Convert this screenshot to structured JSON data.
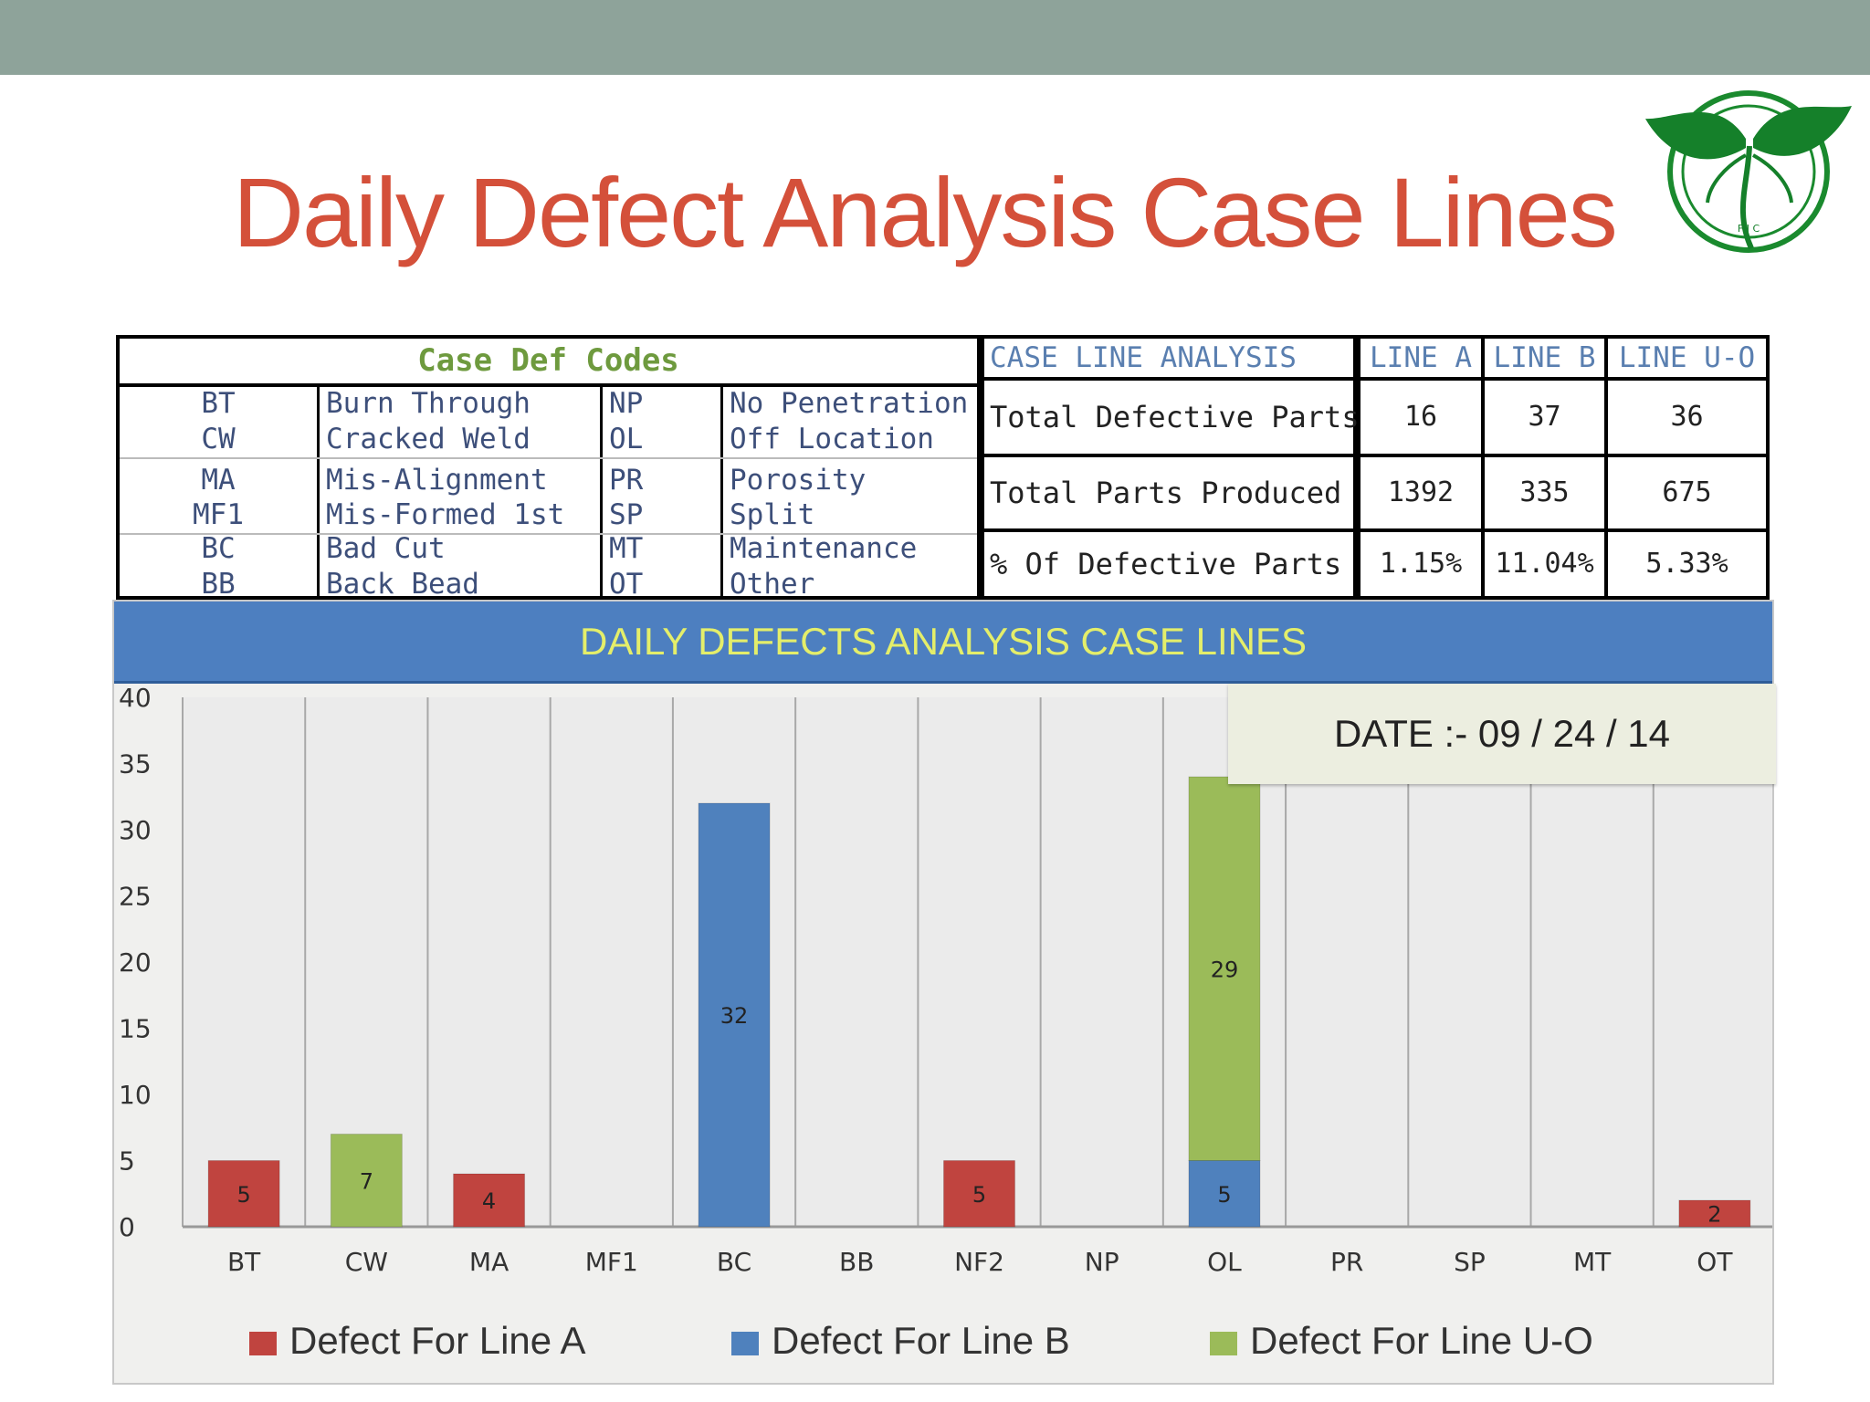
{
  "slide_title": "Daily Defect Analysis Case Lines",
  "logo_text": "F I C",
  "codes_table": {
    "header": "Case Def Codes",
    "rows": [
      {
        "code1": "BT",
        "name1": "Burn Through",
        "code2": "NP",
        "name2": "No Penetration"
      },
      {
        "code1": "CW",
        "name1": "Cracked Weld",
        "code2": "OL",
        "name2": "Off Location"
      },
      {
        "code1": "MA",
        "name1": "Mis-Alignment",
        "code2": "PR",
        "name2": "Porosity"
      },
      {
        "code1": "MF1",
        "name1": "Mis-Formed 1st",
        "code2": "SP",
        "name2": "Split"
      },
      {
        "code1": "BC",
        "name1": "Bad Cut",
        "code2": "MT",
        "name2": "Maintenance"
      },
      {
        "code1": "BB",
        "name1": "Back Bead",
        "code2": "OT",
        "name2": "Other"
      }
    ]
  },
  "analysis_table": {
    "headers": [
      "CASE LINE ANALYSIS",
      "LINE A",
      "LINE B",
      "LINE U-O"
    ],
    "rows": [
      {
        "label": "Total Defective Parts",
        "values": [
          "16",
          "37",
          "36"
        ]
      },
      {
        "label": "Total Parts Produced",
        "values": [
          "1392",
          "335",
          "675"
        ]
      },
      {
        "label": "% Of Defective Parts",
        "values": [
          "1.15%",
          "11.04%",
          "5.33%"
        ]
      }
    ]
  },
  "date_label": "DATE :-  09 / 24 / 14",
  "colors": {
    "line_a": "#c0443f",
    "line_b": "#4f81bd",
    "line_uo": "#9bbb59"
  },
  "chart_data": {
    "type": "bar",
    "stacked": true,
    "title": "DAILY DEFECTS ANALYSIS CASE LINES",
    "categories": [
      "BT",
      "CW",
      "MA",
      "MF1",
      "BC",
      "BB",
      "NF2",
      "NP",
      "OL",
      "PR",
      "SP",
      "MT",
      "OT"
    ],
    "ylim": [
      0,
      40
    ],
    "yticks": [
      0,
      5,
      10,
      15,
      20,
      25,
      30,
      35,
      40
    ],
    "grid": "vertical",
    "legend_position": "bottom",
    "series": [
      {
        "name": "Defect For Line A",
        "values": [
          5,
          0,
          4,
          0,
          0,
          0,
          5,
          0,
          0,
          0,
          0,
          0,
          2
        ]
      },
      {
        "name": "Defect For Line B",
        "values": [
          0,
          0,
          0,
          0,
          32,
          0,
          0,
          0,
          5,
          0,
          0,
          0,
          0
        ]
      },
      {
        "name": "Defect For Line U-O",
        "values": [
          0,
          7,
          0,
          0,
          0,
          0,
          0,
          0,
          29,
          0,
          0,
          0,
          0
        ]
      }
    ]
  }
}
